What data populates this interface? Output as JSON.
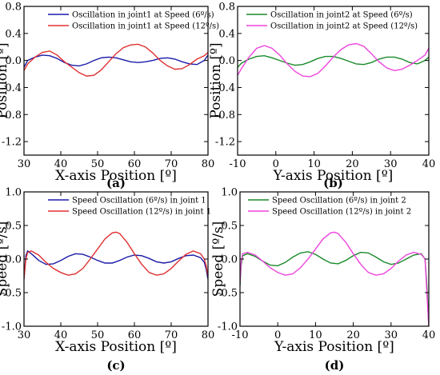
{
  "chart_data": [
    {
      "type": "line",
      "panel": "(a)",
      "xlabel": "X-axis Position [º]",
      "ylabel": "Position [º]",
      "xlim": [
        30,
        80
      ],
      "ylim": [
        -1.4,
        0.8
      ],
      "xticks": [
        30,
        40,
        50,
        60,
        70,
        80
      ],
      "yticks": [
        0.8,
        0.4,
        0.0,
        -0.4,
        -0.8,
        -1.2
      ],
      "xtick_labels": [
        "30",
        "40",
        "50",
        "60",
        "70",
        "80"
      ],
      "ytick_labels": [
        "0.8",
        "0.4",
        "0.0",
        "-0.4",
        "-0.8",
        "-1.2"
      ],
      "legend_position": "top-left",
      "series": [
        {
          "name": "Oscillation in joint1 at Speed  (6º/s)",
          "color": "#1a1aa8",
          "x": [
            30,
            31,
            33,
            35,
            37,
            39,
            41,
            43,
            45,
            47,
            49,
            51,
            53,
            55,
            57,
            59,
            61,
            63,
            65,
            67,
            69,
            71,
            73,
            75,
            77,
            79,
            80
          ],
          "y": [
            -0.1,
            0.0,
            0.05,
            0.08,
            0.07,
            0.03,
            -0.03,
            -0.07,
            -0.08,
            -0.05,
            0.0,
            0.04,
            0.05,
            0.04,
            0.01,
            -0.02,
            -0.03,
            -0.02,
            0.0,
            0.03,
            0.04,
            0.02,
            -0.02,
            -0.05,
            -0.06,
            0.0,
            0.08
          ]
        },
        {
          "name": "Oscillation in joint1 at Speed  (12º/s)",
          "color": "#e03030",
          "x": [
            30,
            31,
            33,
            35,
            37,
            39,
            41,
            43,
            45,
            47,
            49,
            51,
            53,
            55,
            57,
            59,
            61,
            63,
            65,
            67,
            69,
            71,
            73,
            75,
            77,
            79,
            80
          ],
          "y": [
            -0.15,
            -0.05,
            0.05,
            0.12,
            0.14,
            0.08,
            -0.02,
            -0.1,
            -0.18,
            -0.23,
            -0.22,
            -0.14,
            -0.02,
            0.1,
            0.19,
            0.23,
            0.24,
            0.2,
            0.11,
            0.0,
            -0.08,
            -0.13,
            -0.12,
            -0.06,
            0.02,
            0.07,
            0.12
          ]
        }
      ]
    },
    {
      "type": "line",
      "panel": "(b)",
      "xlabel": "Y-axis Position [º]",
      "ylabel": "Position [º]",
      "xlim": [
        -10,
        40
      ],
      "ylim": [
        -1.4,
        0.8
      ],
      "xticks": [
        -10,
        0,
        10,
        20,
        30,
        40
      ],
      "yticks": [
        0.8,
        0.4,
        0.0,
        -0.4,
        -0.8,
        -1.2
      ],
      "xtick_labels": [
        "-10",
        "0",
        "10",
        "20",
        "30",
        "40"
      ],
      "ytick_labels": [
        "0.8",
        "0.4",
        "0.0",
        "-0.4",
        "-0.8",
        "-1.2"
      ],
      "legend_position": "top-right",
      "series": [
        {
          "name": "Oscillation in joint2 at Speed  (6º/s)",
          "color": "#1a8a2a",
          "x": [
            -10,
            -9,
            -7,
            -5,
            -3,
            -1,
            1,
            3,
            5,
            7,
            9,
            11,
            13,
            15,
            17,
            19,
            21,
            23,
            25,
            27,
            29,
            31,
            33,
            35,
            37,
            39,
            40
          ],
          "y": [
            -0.1,
            -0.04,
            0.02,
            0.06,
            0.07,
            0.04,
            0.0,
            -0.04,
            -0.07,
            -0.06,
            -0.02,
            0.03,
            0.06,
            0.06,
            0.03,
            -0.01,
            -0.05,
            -0.06,
            -0.03,
            0.02,
            0.05,
            0.05,
            0.02,
            -0.03,
            -0.05,
            0.0,
            0.05
          ]
        },
        {
          "name": "Oscillation in joint2 at Speed  (12º/s)",
          "color": "#ee44dd",
          "x": [
            -10,
            -9,
            -7,
            -5,
            -3,
            -1,
            1,
            3,
            5,
            7,
            9,
            11,
            13,
            15,
            17,
            19,
            21,
            23,
            25,
            27,
            29,
            31,
            33,
            35,
            37,
            39,
            40
          ],
          "y": [
            -0.22,
            -0.12,
            0.05,
            0.18,
            0.22,
            0.18,
            0.08,
            -0.05,
            -0.16,
            -0.23,
            -0.24,
            -0.19,
            -0.08,
            0.05,
            0.16,
            0.23,
            0.25,
            0.21,
            0.1,
            -0.02,
            -0.11,
            -0.15,
            -0.13,
            -0.07,
            0.0,
            0.08,
            0.18
          ]
        }
      ]
    },
    {
      "type": "line",
      "panel": "(c)",
      "xlabel": "X-axis Position [º]",
      "ylabel": "Speed [º/s]",
      "xlim": [
        30,
        80
      ],
      "ylim": [
        -1.0,
        1.0
      ],
      "xticks": [
        30,
        40,
        50,
        60,
        70,
        80
      ],
      "yticks": [
        1.0,
        0.5,
        0.0,
        -0.5,
        -1.0
      ],
      "xtick_labels": [
        "30",
        "40",
        "50",
        "60",
        "70",
        "80"
      ],
      "ytick_labels": [
        "1.0",
        "0.5",
        "0.0",
        "-0.5",
        "-1.0"
      ],
      "legend_position": "top-left",
      "series": [
        {
          "name": "Speed Oscillation (6º/s) in joint 1",
          "color": "#1a1aa8",
          "x": [
            30,
            30.5,
            31,
            32,
            34,
            36,
            38,
            40,
            42,
            44,
            46,
            48,
            50,
            52,
            54,
            56,
            58,
            60,
            62,
            64,
            66,
            68,
            70,
            72,
            74,
            76,
            78,
            79,
            79.5,
            80
          ],
          "y": [
            -0.3,
            0.05,
            0.12,
            0.08,
            -0.02,
            -0.08,
            -0.07,
            -0.02,
            0.04,
            0.08,
            0.07,
            0.03,
            -0.02,
            -0.06,
            -0.06,
            -0.02,
            0.03,
            0.06,
            0.05,
            0.01,
            -0.04,
            -0.06,
            -0.04,
            0.01,
            0.05,
            0.06,
            0.02,
            -0.05,
            -0.15,
            -0.3
          ]
        },
        {
          "name": "Speed  Oscillation  (12º/s) in joint 1",
          "color": "#e03030",
          "x": [
            30,
            30.5,
            31,
            32,
            34,
            36,
            38,
            40,
            42,
            44,
            46,
            48,
            50,
            52,
            54,
            55,
            56,
            58,
            60,
            62,
            64,
            66,
            68,
            70,
            72,
            74,
            76,
            78,
            79,
            79.5,
            80
          ],
          "y": [
            -0.3,
            0.0,
            0.1,
            0.12,
            0.06,
            -0.05,
            -0.14,
            -0.2,
            -0.24,
            -0.22,
            -0.14,
            0.0,
            0.15,
            0.3,
            0.39,
            0.4,
            0.38,
            0.25,
            0.08,
            -0.08,
            -0.2,
            -0.24,
            -0.22,
            -0.14,
            -0.03,
            0.07,
            0.12,
            0.08,
            0.0,
            -0.1,
            -0.25
          ]
        }
      ]
    },
    {
      "type": "line",
      "panel": "(d)",
      "xlabel": "Y-axis Position [º]",
      "ylabel": "Speed [º/s]",
      "xlim": [
        -10,
        40
      ],
      "ylim": [
        -1.0,
        1.0
      ],
      "xticks": [
        -10,
        0,
        10,
        20,
        30,
        40
      ],
      "yticks": [
        1.0,
        0.5,
        0.0,
        -0.5,
        -1.0
      ],
      "xtick_labels": [
        "-10",
        "0",
        "10",
        "20",
        "30",
        "40"
      ],
      "ytick_labels": [
        "1.0",
        "0.5",
        "0.0",
        "-0.5",
        "-1.0"
      ],
      "legend_position": "top-right",
      "series": [
        {
          "name": "Speed Oscillation (6º/s) in joint 2",
          "color": "#1a8a2a",
          "x": [
            -10,
            -9.7,
            -9.3,
            -8,
            -6,
            -4,
            -2,
            0,
            2,
            4,
            6,
            8,
            10,
            12,
            14,
            16,
            18,
            20,
            22,
            24,
            26,
            28,
            30,
            32,
            34,
            36,
            38,
            39,
            39.5,
            40
          ],
          "y": [
            -0.4,
            -0.1,
            0.05,
            0.08,
            0.04,
            -0.03,
            -0.09,
            -0.1,
            -0.05,
            0.03,
            0.09,
            0.11,
            0.07,
            0.0,
            -0.06,
            -0.07,
            -0.02,
            0.05,
            0.1,
            0.09,
            0.03,
            -0.04,
            -0.08,
            -0.06,
            0.0,
            0.06,
            0.08,
            0.0,
            -0.4,
            -1.0
          ]
        },
        {
          "name": "Speed  Oscillation  (12º/s) in joint 2",
          "color": "#ee44dd",
          "x": [
            -10,
            -9.7,
            -9.3,
            -8,
            -6,
            -4,
            -2,
            0,
            2,
            4,
            6,
            8,
            10,
            12,
            14,
            15,
            16,
            18,
            20,
            22,
            24,
            26,
            28,
            30,
            32,
            34,
            36,
            38,
            39,
            39.5,
            40
          ],
          "y": [
            -0.35,
            -0.05,
            0.08,
            0.1,
            0.06,
            -0.03,
            -0.13,
            -0.2,
            -0.24,
            -0.22,
            -0.13,
            0.0,
            0.15,
            0.3,
            0.39,
            0.4,
            0.38,
            0.25,
            0.08,
            -0.08,
            -0.2,
            -0.24,
            -0.22,
            -0.14,
            -0.03,
            0.06,
            0.1,
            0.07,
            0.0,
            -0.5,
            -1.0
          ]
        }
      ]
    }
  ]
}
